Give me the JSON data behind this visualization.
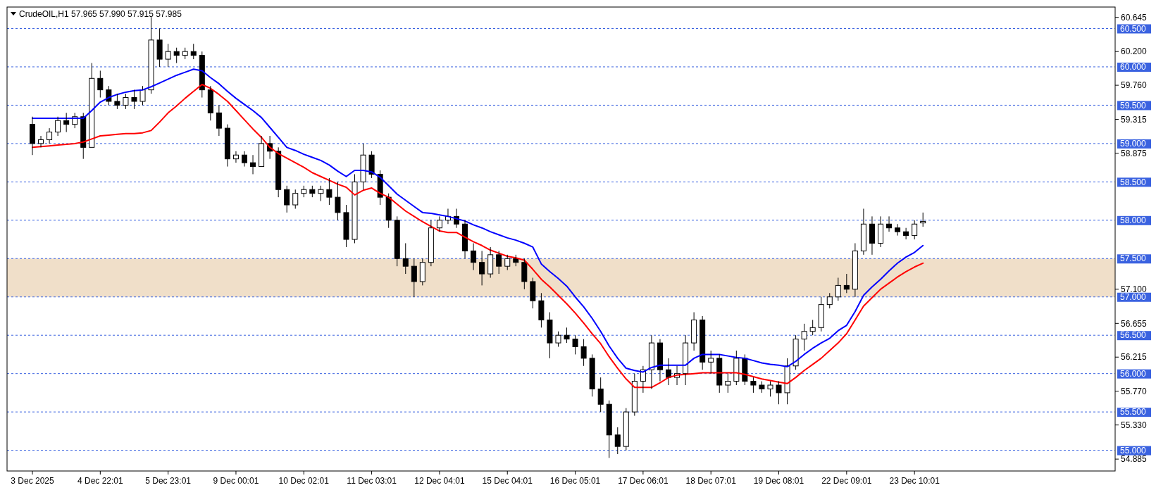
{
  "chart_data": {
    "type": "candlestick",
    "title": "CrudeOIL,H1  57.965 57.990 57.915 57.985",
    "categories": [
      "3 Dec 2025",
      null,
      null,
      null,
      null,
      null,
      null,
      null,
      "4 Dec 22:01",
      null,
      null,
      null,
      null,
      null,
      null,
      null,
      "5 Dec 23:01",
      null,
      null,
      null,
      null,
      null,
      null,
      null,
      "9 Dec 00:01",
      null,
      null,
      null,
      null,
      null,
      null,
      null,
      "10 Dec 02:01",
      null,
      null,
      null,
      null,
      null,
      null,
      null,
      "11 Dec 03:01",
      null,
      null,
      null,
      null,
      null,
      null,
      null,
      "12 Dec 04:01",
      null,
      null,
      null,
      null,
      null,
      null,
      null,
      "15 Dec 04:01",
      null,
      null,
      null,
      null,
      null,
      null,
      null,
      "16 Dec 05:01",
      null,
      null,
      null,
      null,
      null,
      null,
      null,
      "17 Dec 06:01",
      null,
      null,
      null,
      null,
      null,
      null,
      null,
      "18 Dec 07:01",
      null,
      null,
      null,
      null,
      null,
      null,
      null,
      "19 Dec 08:01",
      null,
      null,
      null,
      null,
      null,
      null,
      null,
      "22 Dec 09:01",
      null,
      null,
      null,
      null,
      null,
      null,
      null,
      "23 Dec 10:01",
      null
    ],
    "ohlc": [
      [
        59.25,
        59.35,
        58.85,
        59.0
      ],
      [
        59.0,
        59.1,
        58.95,
        59.05
      ],
      [
        59.05,
        59.2,
        59.0,
        59.15
      ],
      [
        59.15,
        59.35,
        59.1,
        59.3
      ],
      [
        59.3,
        59.4,
        59.15,
        59.25
      ],
      [
        59.25,
        59.4,
        59.2,
        59.35
      ],
      [
        59.35,
        59.4,
        58.8,
        58.95
      ],
      [
        58.95,
        60.05,
        58.95,
        59.85
      ],
      [
        59.85,
        59.95,
        59.6,
        59.7
      ],
      [
        59.7,
        59.75,
        59.5,
        59.55
      ],
      [
        59.55,
        59.65,
        59.45,
        59.5
      ],
      [
        59.5,
        59.65,
        59.45,
        59.6
      ],
      [
        59.6,
        59.7,
        59.45,
        59.55
      ],
      [
        59.55,
        59.75,
        59.5,
        59.7
      ],
      [
        59.7,
        60.65,
        59.65,
        60.35
      ],
      [
        60.35,
        60.5,
        60.0,
        60.1
      ],
      [
        60.1,
        60.3,
        60.0,
        60.2
      ],
      [
        60.2,
        60.25,
        60.05,
        60.15
      ],
      [
        60.15,
        60.25,
        60.1,
        60.2
      ],
      [
        60.2,
        60.3,
        60.1,
        60.15
      ],
      [
        60.15,
        60.2,
        59.6,
        59.7
      ],
      [
        59.7,
        59.75,
        59.3,
        59.4
      ],
      [
        59.4,
        59.5,
        59.1,
        59.2
      ],
      [
        59.2,
        59.25,
        58.7,
        58.8
      ],
      [
        58.8,
        58.9,
        58.75,
        58.85
      ],
      [
        58.85,
        58.9,
        58.7,
        58.75
      ],
      [
        58.75,
        58.85,
        58.6,
        58.7
      ],
      [
        58.7,
        59.1,
        58.7,
        59.0
      ],
      [
        59.0,
        59.1,
        58.8,
        58.9
      ],
      [
        58.9,
        58.95,
        58.3,
        58.4
      ],
      [
        58.4,
        58.45,
        58.1,
        58.2
      ],
      [
        58.2,
        58.4,
        58.15,
        58.35
      ],
      [
        58.35,
        58.45,
        58.3,
        58.4
      ],
      [
        58.4,
        58.45,
        58.3,
        58.35
      ],
      [
        58.35,
        58.45,
        58.25,
        58.4
      ],
      [
        58.4,
        58.55,
        58.2,
        58.3
      ],
      [
        58.3,
        58.5,
        58.0,
        58.1
      ],
      [
        58.1,
        58.2,
        57.65,
        57.75
      ],
      [
        57.75,
        58.6,
        57.7,
        58.5
      ],
      [
        58.5,
        59.0,
        58.4,
        58.85
      ],
      [
        58.85,
        58.9,
        58.55,
        58.6
      ],
      [
        58.6,
        58.65,
        58.2,
        58.3
      ],
      [
        58.3,
        58.35,
        57.9,
        58.0
      ],
      [
        58.0,
        58.05,
        57.4,
        57.5
      ],
      [
        57.5,
        57.7,
        57.3,
        57.4
      ],
      [
        57.4,
        57.5,
        57.0,
        57.2
      ],
      [
        57.2,
        57.5,
        57.15,
        57.45
      ],
      [
        57.45,
        58.0,
        57.4,
        57.9
      ],
      [
        57.9,
        58.05,
        57.85,
        58.0
      ],
      [
        58.0,
        58.15,
        57.95,
        58.05
      ],
      [
        58.05,
        58.15,
        57.9,
        57.95
      ],
      [
        57.95,
        58.0,
        57.5,
        57.6
      ],
      [
        57.6,
        57.7,
        57.35,
        57.45
      ],
      [
        57.45,
        57.6,
        57.15,
        57.3
      ],
      [
        57.3,
        57.65,
        57.25,
        57.55
      ],
      [
        57.55,
        57.6,
        57.3,
        57.4
      ],
      [
        57.4,
        57.55,
        57.35,
        57.5
      ],
      [
        57.5,
        57.55,
        57.4,
        57.45
      ],
      [
        57.45,
        57.5,
        57.1,
        57.2
      ],
      [
        57.2,
        57.25,
        56.85,
        56.95
      ],
      [
        56.95,
        57.05,
        56.6,
        56.7
      ],
      [
        56.7,
        56.8,
        56.2,
        56.4
      ],
      [
        56.4,
        56.55,
        56.35,
        56.5
      ],
      [
        56.5,
        56.6,
        56.4,
        56.45
      ],
      [
        56.45,
        56.5,
        56.25,
        56.35
      ],
      [
        56.35,
        56.45,
        56.1,
        56.2
      ],
      [
        56.2,
        56.25,
        55.7,
        55.8
      ],
      [
        55.8,
        55.95,
        55.5,
        55.6
      ],
      [
        55.6,
        55.65,
        54.9,
        55.2
      ],
      [
        55.2,
        55.3,
        54.95,
        55.05
      ],
      [
        55.05,
        55.55,
        55.0,
        55.5
      ],
      [
        55.5,
        56.0,
        55.45,
        55.9
      ],
      [
        55.9,
        56.1,
        55.75,
        56.05
      ],
      [
        56.05,
        56.5,
        55.8,
        56.4
      ],
      [
        56.4,
        56.45,
        55.9,
        56.05
      ],
      [
        56.05,
        56.2,
        55.85,
        55.95
      ],
      [
        55.95,
        56.1,
        55.85,
        56.0
      ],
      [
        56.0,
        56.5,
        55.85,
        56.4
      ],
      [
        56.4,
        56.8,
        56.3,
        56.7
      ],
      [
        56.7,
        56.75,
        56.05,
        56.15
      ],
      [
        56.15,
        56.3,
        56.0,
        56.2
      ],
      [
        56.2,
        56.25,
        55.75,
        55.85
      ],
      [
        55.85,
        56.0,
        55.75,
        55.9
      ],
      [
        55.9,
        56.3,
        55.85,
        56.2
      ],
      [
        56.2,
        56.25,
        55.85,
        55.9
      ],
      [
        55.9,
        55.95,
        55.75,
        55.85
      ],
      [
        55.85,
        55.9,
        55.75,
        55.8
      ],
      [
        55.8,
        55.9,
        55.7,
        55.85
      ],
      [
        55.85,
        55.9,
        55.6,
        55.75
      ],
      [
        55.75,
        56.2,
        55.6,
        56.1
      ],
      [
        56.1,
        56.5,
        56.05,
        56.45
      ],
      [
        56.45,
        56.65,
        56.3,
        56.55
      ],
      [
        56.55,
        56.7,
        56.5,
        56.6
      ],
      [
        56.6,
        57.0,
        56.55,
        56.9
      ],
      [
        56.9,
        57.05,
        56.85,
        57.0
      ],
      [
        57.0,
        57.25,
        56.95,
        57.15
      ],
      [
        57.15,
        57.3,
        57.05,
        57.1
      ],
      [
        57.1,
        57.7,
        57.0,
        57.6
      ],
      [
        57.6,
        58.15,
        57.55,
        57.95
      ],
      [
        57.95,
        58.05,
        57.55,
        57.7
      ],
      [
        57.7,
        58.05,
        57.65,
        57.95
      ],
      [
        57.95,
        58.05,
        57.85,
        57.9
      ],
      [
        57.9,
        57.95,
        57.8,
        57.85
      ],
      [
        57.85,
        57.9,
        57.75,
        57.8
      ],
      [
        57.8,
        58.0,
        57.75,
        57.95
      ],
      [
        57.965,
        58.1,
        57.915,
        57.985
      ]
    ],
    "series": [
      {
        "type": "line",
        "color": "#0000ff",
        "values": [
          59.33,
          59.33,
          59.33,
          59.33,
          59.33,
          59.33,
          59.33,
          59.43,
          59.54,
          59.6,
          59.64,
          59.67,
          59.69,
          59.7,
          59.74,
          59.79,
          59.84,
          59.89,
          59.93,
          59.97,
          59.95,
          59.86,
          59.78,
          59.68,
          59.59,
          59.51,
          59.43,
          59.34,
          59.21,
          59.08,
          58.95,
          58.91,
          58.86,
          58.82,
          58.78,
          58.72,
          58.64,
          58.57,
          58.65,
          58.65,
          58.63,
          58.56,
          58.45,
          58.34,
          58.26,
          58.18,
          58.1,
          58.09,
          58.07,
          58.05,
          58.02,
          57.99,
          57.94,
          57.9,
          57.85,
          57.81,
          57.77,
          57.74,
          57.7,
          57.65,
          57.43,
          57.33,
          57.24,
          57.14,
          57.0,
          56.87,
          56.72,
          56.55,
          56.36,
          56.2,
          56.07,
          56.04,
          56.02,
          56.08,
          56.11,
          56.11,
          56.11,
          56.11,
          56.2,
          56.25,
          56.25,
          56.25,
          56.23,
          56.21,
          56.2,
          56.17,
          56.14,
          56.12,
          56.11,
          56.09,
          56.16,
          56.25,
          56.33,
          56.4,
          56.46,
          56.56,
          56.63,
          56.81,
          57.02,
          57.13,
          57.23,
          57.34,
          57.44,
          57.52,
          57.58,
          57.67
        ]
      },
      {
        "type": "line",
        "color": "#ff0000",
        "values": [
          58.95,
          58.96,
          58.97,
          58.98,
          58.99,
          59.0,
          59.02,
          59.06,
          59.1,
          59.11,
          59.12,
          59.13,
          59.13,
          59.14,
          59.17,
          59.28,
          59.4,
          59.49,
          59.59,
          59.68,
          59.77,
          59.72,
          59.64,
          59.55,
          59.43,
          59.31,
          59.19,
          59.08,
          58.95,
          58.87,
          58.81,
          58.75,
          58.69,
          58.62,
          58.57,
          58.52,
          58.47,
          58.43,
          58.33,
          58.39,
          58.42,
          58.35,
          58.3,
          58.21,
          58.12,
          58.05,
          57.98,
          57.92,
          57.86,
          57.84,
          57.84,
          57.78,
          57.72,
          57.67,
          57.61,
          57.57,
          57.53,
          57.51,
          57.48,
          57.36,
          57.23,
          57.13,
          57.02,
          56.91,
          56.79,
          56.66,
          56.52,
          56.39,
          56.22,
          56.07,
          55.93,
          55.82,
          55.82,
          55.82,
          55.88,
          55.95,
          55.98,
          55.99,
          56.0,
          56.01,
          56.01,
          56.01,
          56.01,
          56.01,
          55.99,
          55.96,
          55.93,
          55.91,
          55.89,
          55.87,
          55.95,
          56.04,
          56.12,
          56.2,
          56.3,
          56.4,
          56.52,
          56.7,
          56.88,
          56.99,
          57.1,
          57.18,
          57.26,
          57.33,
          57.39,
          57.44
        ]
      }
    ],
    "ylim": [
      54.73,
      60.78
    ],
    "yticks": [
      60.645,
      {
        "value": 60.2,
        "label": "60.200"
      },
      {
        "value": 59.76,
        "label": "59.760"
      },
      59.315,
      58.875,
      {
        "value": 57.1,
        "label": "57.100"
      },
      56.655,
      56.215,
      {
        "value": 55.77,
        "label": "55.770"
      },
      {
        "value": 55.33,
        "label": "55.330"
      },
      54.885
    ],
    "ref_lines": [
      {
        "axis": "y",
        "value": 60.5,
        "label": "60.500",
        "color": "#3a62e0",
        "line_style": "dashed"
      },
      {
        "axis": "y",
        "value": 60.0,
        "label": "60.000",
        "color": "#3a62e0",
        "line_style": "dashed"
      },
      {
        "axis": "y",
        "value": 59.5,
        "label": "59.500",
        "color": "#3a62e0",
        "line_style": "dashed"
      },
      {
        "axis": "y",
        "value": 59.0,
        "label": "59.000",
        "color": "#3a62e0",
        "line_style": "dashed"
      },
      {
        "axis": "y",
        "value": 58.5,
        "label": "58.500",
        "color": "#3a62e0",
        "line_style": "dashed"
      },
      {
        "axis": "y",
        "value": 58.0,
        "label": "58.000",
        "color": "#3a62e0",
        "line_style": "dashed"
      },
      {
        "axis": "y",
        "value": 57.5,
        "label": "57.500",
        "color": "#3a62e0",
        "line_style": "dashed"
      },
      {
        "axis": "y",
        "value": 57.0,
        "label": "57.000",
        "color": "#3a62e0",
        "line_style": "dashed"
      },
      {
        "axis": "y",
        "value": 56.5,
        "label": "56.500",
        "color": "#3a62e0",
        "line_style": "dashed"
      },
      {
        "axis": "y",
        "value": 56.0,
        "label": "56.000",
        "color": "#3a62e0",
        "line_style": "dashed"
      },
      {
        "axis": "y",
        "value": 55.5,
        "label": "55.500",
        "color": "#3a62e0",
        "line_style": "dashed"
      },
      {
        "axis": "y",
        "value": 55.0,
        "label": "55.000",
        "color": "#3a62e0",
        "line_style": "dashed"
      }
    ],
    "bands": [
      {
        "axis": "y",
        "from": 57.0,
        "to": 57.5,
        "color": "#deb887"
      }
    ],
    "grid": false
  }
}
